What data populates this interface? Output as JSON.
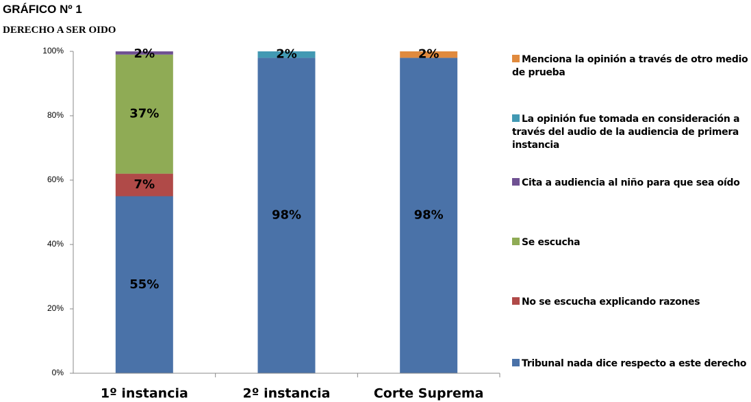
{
  "chart_data": {
    "type": "stacked_bar",
    "title": "GRÁFICO Nº 1",
    "subtitle": "DERECHO A SER OIDO",
    "categories": [
      "1º instancia",
      "2º instancia",
      "Corte Suprema"
    ],
    "ylim": [
      0,
      100
    ],
    "yticks": [
      {
        "value": 0,
        "label": "0%"
      },
      {
        "value": 20,
        "label": "20%"
      },
      {
        "value": 40,
        "label": "40%"
      },
      {
        "value": 60,
        "label": "60%"
      },
      {
        "value": 80,
        "label": "80%"
      },
      {
        "value": 100,
        "label": "100%"
      }
    ],
    "series": [
      {
        "name": "Tribunal nada dice respecto a este derecho",
        "color": "#4a72a8",
        "values": [
          55,
          98,
          98
        ],
        "value_labels": [
          "55%",
          "98%",
          "98%"
        ]
      },
      {
        "name": "No se escucha explicando razones",
        "color": "#b04a48",
        "values": [
          7,
          null,
          null
        ],
        "value_labels": [
          "7%",
          null,
          null
        ]
      },
      {
        "name": "Se escucha",
        "color": "#8fab55",
        "values": [
          37,
          null,
          null
        ],
        "value_labels": [
          "37%",
          null,
          null
        ]
      },
      {
        "name": "Cita a audiencia al niño para que sea oído",
        "color": "#6f5192",
        "values": [
          2,
          null,
          null
        ],
        "value_labels": [
          "2%",
          null,
          null
        ]
      },
      {
        "name": "La opinión fue tomada en consideración a través del audio de la audiencia de primera instancia",
        "color": "#4299b3",
        "values": [
          null,
          2,
          null
        ],
        "value_labels": [
          null,
          "2%",
          null
        ]
      },
      {
        "name": "Menciona la opinión a través de otro medio de prueba",
        "color": "#e08a3e",
        "values": [
          null,
          null,
          2
        ],
        "value_labels": [
          null,
          null,
          "2%"
        ]
      }
    ],
    "legend": "right"
  }
}
